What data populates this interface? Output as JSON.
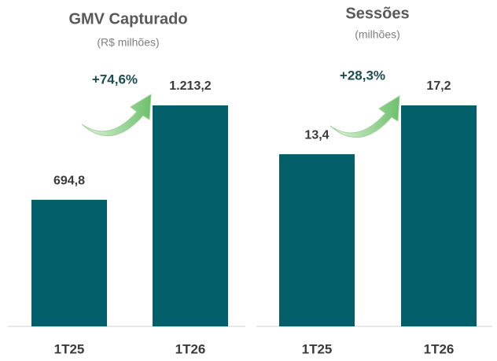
{
  "chart_data": [
    {
      "type": "bar",
      "title": "GMV Capturado",
      "subtitle": "(R$ milhões)",
      "categories": [
        "1T25",
        "1T26"
      ],
      "values": [
        694.8,
        1213.2
      ],
      "value_labels": [
        "694,8",
        "1.213,2"
      ],
      "annotation": "+74,6%",
      "color": "#035f69"
    },
    {
      "type": "bar",
      "title": "Sessões",
      "subtitle": "(milhões)",
      "categories": [
        "1T25",
        "1T26"
      ],
      "values": [
        13.4,
        17.2
      ],
      "value_labels": [
        "13,4",
        "17,2"
      ],
      "annotation": "+28,3%",
      "color": "#035f69"
    }
  ]
}
